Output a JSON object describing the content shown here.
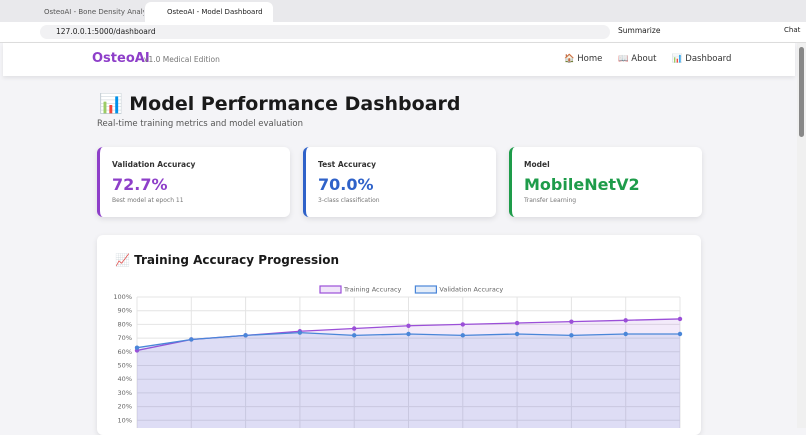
{
  "browser": {
    "tabs": [
      "OsteoAI - Bone Density Analysis",
      "OsteoAI - Model Dashboard"
    ],
    "url": "127.0.0.1:5000/dashboard",
    "summarize": "Summarize",
    "chat": "Chat"
  },
  "nav": {
    "brand": "OsteoAI",
    "edition": "v1.0 Medical Edition",
    "links": [
      "🏠 Home",
      "📖 About",
      "📊 Dashboard"
    ]
  },
  "header": {
    "title": "📊 Model Performance Dashboard",
    "subtitle": "Real-time training metrics and model evaluation"
  },
  "cards": [
    {
      "label": "Validation Accuracy",
      "value": "72.7%",
      "note": "Best model at epoch 11",
      "color": "#8e3fc9"
    },
    {
      "label": "Test Accuracy",
      "value": "70.0%",
      "note": "3-class classification",
      "color": "#2f62c9"
    },
    {
      "label": "Model",
      "value": "MobileNetV2",
      "note": "Transfer Learning",
      "color": "#1e9c4a"
    }
  ],
  "section_title": "📈 Training Accuracy Progression",
  "chart_data": {
    "type": "line",
    "categories": [
      null,
      null,
      null,
      null,
      null,
      null,
      null,
      null,
      null,
      null,
      null
    ],
    "series": [
      {
        "name": "Training Accuracy",
        "color": "#9b4fd8",
        "values": [
          61,
          69,
          72,
          75,
          77,
          79,
          80,
          81,
          82,
          83,
          84
        ]
      },
      {
        "name": "Validation Accuracy",
        "color": "#4a86d8",
        "values": [
          63,
          69,
          72,
          74,
          72,
          73,
          72,
          73,
          72,
          73,
          73
        ]
      }
    ],
    "ylim": [
      0,
      100
    ],
    "yticks": [
      {
        "value": 10,
        "label": "10%"
      },
      {
        "value": 20,
        "label": "20%"
      },
      {
        "value": 30,
        "label": "30%"
      },
      {
        "value": 40,
        "label": "40%"
      },
      {
        "value": 50,
        "label": "50%"
      },
      {
        "value": 60,
        "label": "60%"
      },
      {
        "value": 70,
        "label": "70%"
      },
      {
        "value": 80,
        "label": "80%"
      },
      {
        "value": 90,
        "label": "90%"
      },
      {
        "value": 100,
        "label": "100%"
      }
    ],
    "grid": true,
    "legend": "top"
  }
}
